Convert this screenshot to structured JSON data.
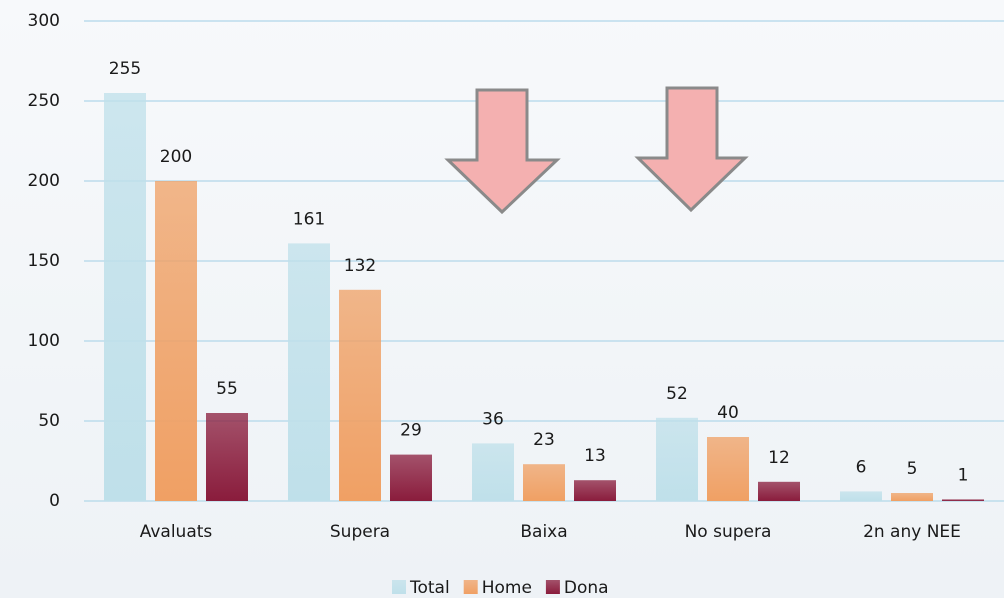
{
  "chart_data": {
    "type": "bar",
    "categories": [
      "Avaluats",
      "Supera",
      "Baixa",
      "No supera",
      "2n any NEE"
    ],
    "series": [
      {
        "name": "Total",
        "color": "#bfe0ea",
        "values": [
          255,
          161,
          36,
          52,
          6
        ]
      },
      {
        "name": "Home",
        "color": "#f0a064",
        "values": [
          200,
          132,
          23,
          40,
          5
        ]
      },
      {
        "name": "Dona",
        "color": "#8a1c3c",
        "values": [
          55,
          29,
          13,
          12,
          1
        ]
      }
    ],
    "ylim": [
      0,
      300
    ],
    "yticks": [
      0,
      50,
      100,
      150,
      200,
      250,
      300
    ],
    "grid": true,
    "legend": "bottom"
  }
}
